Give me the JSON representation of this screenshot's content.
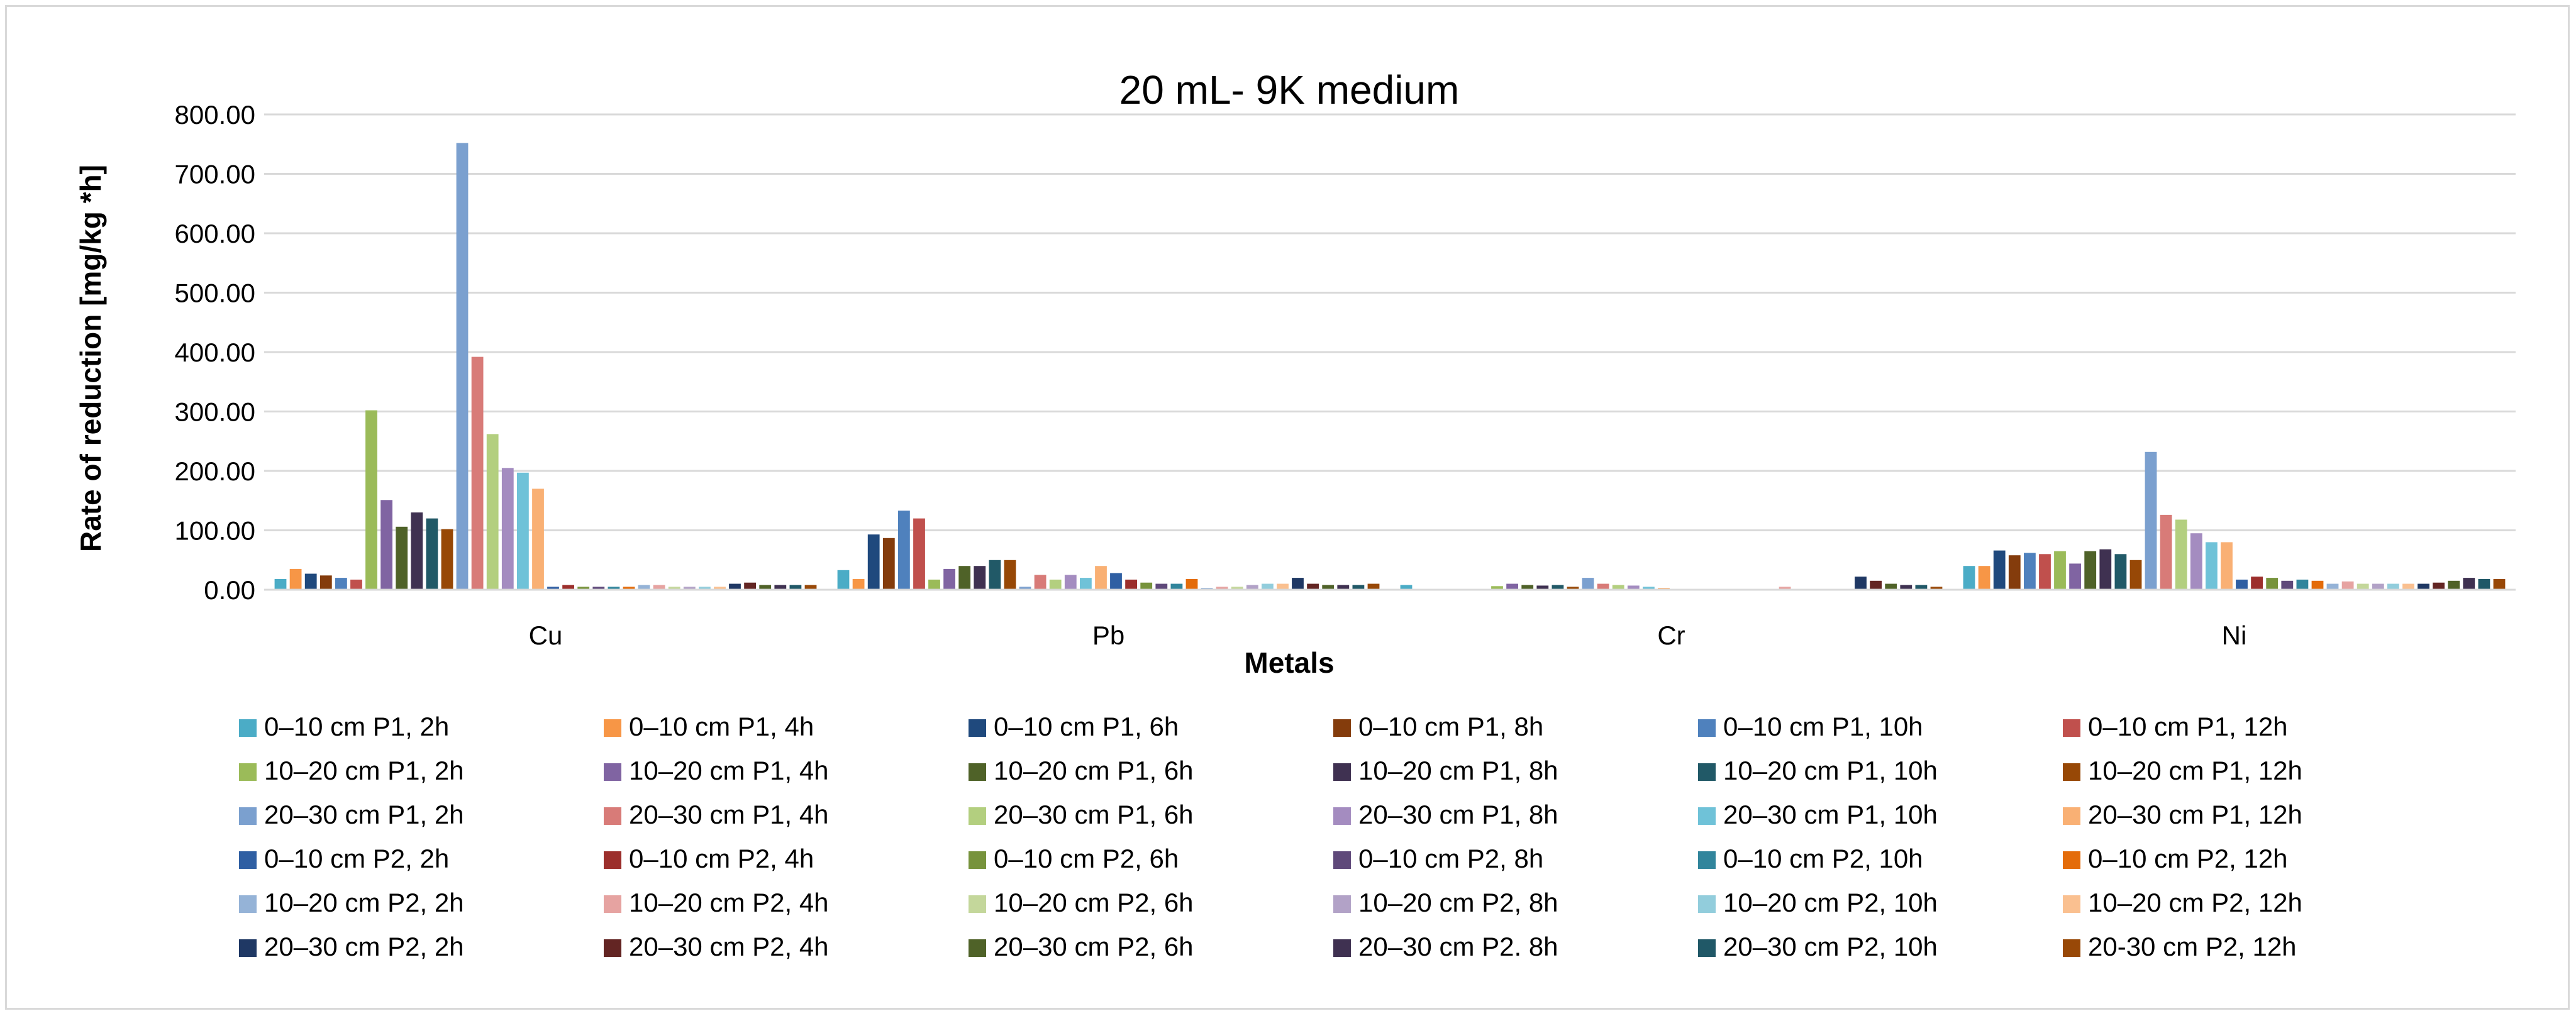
{
  "chart_data": {
    "type": "bar",
    "title": "20 mL- 9K medium",
    "xlabel": "Metals",
    "ylabel": "Rate of reduction  [mg/kg *h]",
    "ylim": [
      0,
      800
    ],
    "yticks": [
      "0.00",
      "100.00",
      "200.00",
      "300.00",
      "400.00",
      "500.00",
      "600.00",
      "700.00",
      "800.00"
    ],
    "grid": true,
    "legend_position": "bottom",
    "categories": [
      "Cu",
      "Pb",
      "Cr",
      "Ni"
    ],
    "series": [
      {
        "name": "0–10 cm P1, 2h",
        "color": "#4bacc6",
        "values": [
          18,
          33,
          8,
          40
        ]
      },
      {
        "name": "0–10 cm P1, 4h",
        "color": "#f79646",
        "values": [
          35,
          18,
          0,
          40
        ]
      },
      {
        "name": "0–10 cm P1, 6h",
        "color": "#1f497d",
        "values": [
          27,
          93,
          0,
          66
        ]
      },
      {
        "name": "0–10 cm P1, 8h",
        "color": "#843c0c",
        "values": [
          24,
          87,
          0,
          58
        ]
      },
      {
        "name": "0–10 cm P1, 10h",
        "color": "#4f81bd",
        "values": [
          20,
          133,
          0,
          62
        ]
      },
      {
        "name": "0–10 cm P1, 12h",
        "color": "#c0504d",
        "values": [
          17,
          120,
          0,
          60
        ]
      },
      {
        "name": "10–20 cm P1, 2h",
        "color": "#9bbb59",
        "values": [
          302,
          17,
          6,
          65
        ]
      },
      {
        "name": "10–20 cm P1, 4h",
        "color": "#8064a2",
        "values": [
          151,
          35,
          10,
          44
        ]
      },
      {
        "name": "10–20 cm P1, 6h",
        "color": "#4f6228",
        "values": [
          106,
          40,
          8,
          65
        ]
      },
      {
        "name": "10–20 cm P1, 8h",
        "color": "#3f3151",
        "values": [
          130,
          40,
          7,
          68
        ]
      },
      {
        "name": "10–20 cm P1, 10h",
        "color": "#215967",
        "values": [
          120,
          50,
          8,
          60
        ]
      },
      {
        "name": "10–20 cm P1, 12h",
        "color": "#974806",
        "values": [
          102,
          50,
          5,
          50
        ]
      },
      {
        "name": "20–30 cm P1, 2h",
        "color": "#7ba0cf",
        "values": [
          752,
          5,
          20,
          232
        ]
      },
      {
        "name": "20–30 cm P1, 4h",
        "color": "#d87b78",
        "values": [
          392,
          25,
          10,
          126
        ]
      },
      {
        "name": "20–30 cm P1, 6h",
        "color": "#b3cf7f",
        "values": [
          262,
          17,
          8,
          118
        ]
      },
      {
        "name": "20–30 cm P1, 8h",
        "color": "#a48cc0",
        "values": [
          205,
          25,
          7,
          95
        ]
      },
      {
        "name": "20–30 cm P1, 10h",
        "color": "#6fc2d8",
        "values": [
          197,
          20,
          5,
          80
        ]
      },
      {
        "name": "20–30 cm P1, 12h",
        "color": "#f9b074",
        "values": [
          170,
          40,
          3,
          80
        ]
      },
      {
        "name": "0–10 cm P2, 2h",
        "color": "#2f5fa3",
        "values": [
          5,
          28,
          0,
          17
        ]
      },
      {
        "name": "0–10 cm P2, 4h",
        "color": "#9c2f2c",
        "values": [
          8,
          17,
          0,
          22
        ]
      },
      {
        "name": "0–10 cm P2, 6h",
        "color": "#77933c",
        "values": [
          5,
          12,
          0,
          20
        ]
      },
      {
        "name": "0–10 cm P2, 8h",
        "color": "#5f497a",
        "values": [
          5,
          10,
          0,
          15
        ]
      },
      {
        "name": "0–10 cm P2, 10h",
        "color": "#31859c",
        "values": [
          5,
          10,
          0,
          17
        ]
      },
      {
        "name": "0–10 cm P2, 12h",
        "color": "#e46c0a",
        "values": [
          5,
          18,
          0,
          15
        ]
      },
      {
        "name": "10–20 cm P2, 2h",
        "color": "#95b3d7",
        "values": [
          8,
          3,
          0,
          10
        ]
      },
      {
        "name": "10–20 cm P2, 4h",
        "color": "#e6a3a1",
        "values": [
          8,
          5,
          5,
          14
        ]
      },
      {
        "name": "10–20 cm P2, 6h",
        "color": "#c4d79b",
        "values": [
          5,
          5,
          0,
          10
        ]
      },
      {
        "name": "10–20 cm P2, 8h",
        "color": "#b2a2c7",
        "values": [
          5,
          8,
          0,
          10
        ]
      },
      {
        "name": "10–20 cm P2, 10h",
        "color": "#92cddc",
        "values": [
          5,
          10,
          0,
          10
        ]
      },
      {
        "name": "10–20 cm P2, 12h",
        "color": "#fac090",
        "values": [
          5,
          10,
          0,
          10
        ]
      },
      {
        "name": "20–30 cm P2, 2h",
        "color": "#1f3864",
        "values": [
          10,
          20,
          22,
          10
        ]
      },
      {
        "name": "20–30 cm P2, 4h",
        "color": "#632523",
        "values": [
          12,
          10,
          15,
          12
        ]
      },
      {
        "name": "20–30 cm P2, 6h",
        "color": "#4f6228",
        "values": [
          8,
          8,
          10,
          15
        ]
      },
      {
        "name": "20–30 cm P2. 8h",
        "color": "#3f3151",
        "values": [
          8,
          8,
          8,
          20
        ]
      },
      {
        "name": "20–30 cm P2, 10h",
        "color": "#205867",
        "values": [
          8,
          8,
          8,
          18
        ]
      },
      {
        "name": "20-30 cm P2, 12h",
        "color": "#984807",
        "values": [
          8,
          10,
          5,
          18
        ]
      }
    ]
  }
}
